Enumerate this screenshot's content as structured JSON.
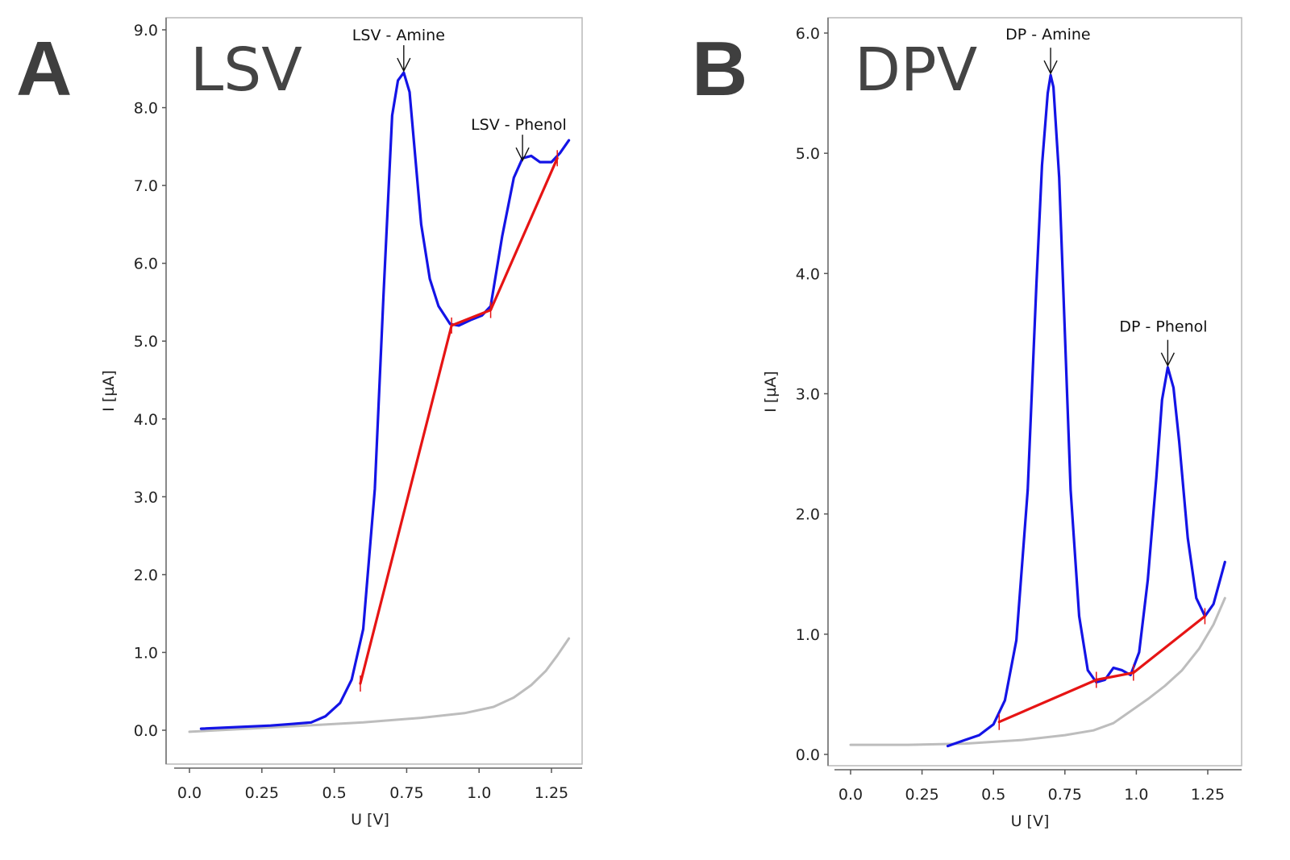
{
  "panels": [
    {
      "letter": "A",
      "mode": "LSV"
    },
    {
      "letter": "B",
      "mode": "DPV"
    }
  ],
  "colors": {
    "sample": "#1414e6",
    "baseline": "#e61414",
    "blank": "#bdbdbd",
    "frame": "#b9b9b9"
  },
  "chart_data": [
    {
      "type": "line",
      "title": "LSV",
      "xlabel": "U [V]",
      "ylabel": "I [µA]",
      "xlim": [
        -0.05,
        1.37
      ],
      "ylim": [
        -0.5,
        9.1
      ],
      "xticks": [
        0,
        0.25,
        0.5,
        0.75,
        1.0,
        1.25
      ],
      "xtick_labels": [
        "0.0",
        "0.25",
        "0.5",
        "0.75",
        "1.0",
        "1.25"
      ],
      "yticks": [
        0,
        1,
        2,
        3,
        4,
        5,
        6,
        7,
        8,
        9
      ],
      "ytick_labels": [
        "0.0",
        "1.0",
        "2.0",
        "3.0",
        "4.0",
        "5.0",
        "6.0",
        "7.0",
        "8.0",
        "9.0"
      ],
      "series": [
        {
          "name": "sample",
          "color": "#1414e6",
          "x": [
            0.04,
            0.28,
            0.35,
            0.42,
            0.47,
            0.52,
            0.56,
            0.6,
            0.64,
            0.67,
            0.7,
            0.72,
            0.74,
            0.76,
            0.78,
            0.8,
            0.83,
            0.86,
            0.9,
            0.93,
            0.97,
            1.01,
            1.04,
            1.08,
            1.12,
            1.15,
            1.18,
            1.21,
            1.25,
            1.28,
            1.31
          ],
          "y": [
            0.02,
            0.06,
            0.08,
            0.1,
            0.18,
            0.35,
            0.65,
            1.3,
            3.1,
            5.6,
            7.9,
            8.35,
            8.45,
            8.2,
            7.35,
            6.5,
            5.8,
            5.45,
            5.22,
            5.2,
            5.27,
            5.33,
            5.45,
            6.35,
            7.1,
            7.35,
            7.38,
            7.3,
            7.3,
            7.42,
            7.58
          ]
        },
        {
          "name": "baseline",
          "color": "#e61414",
          "x": [
            0.59,
            0.905,
            1.04,
            1.27
          ],
          "y": [
            0.6,
            5.2,
            5.4,
            7.35
          ]
        },
        {
          "name": "blank",
          "color": "#bdbdbd",
          "x": [
            0.0,
            0.2,
            0.4,
            0.6,
            0.8,
            0.95,
            1.05,
            1.12,
            1.18,
            1.23,
            1.27,
            1.31
          ],
          "y": [
            -0.02,
            0.02,
            0.06,
            0.1,
            0.16,
            0.22,
            0.3,
            0.42,
            0.58,
            0.76,
            0.96,
            1.18
          ]
        }
      ],
      "baseline_markers": [
        [
          0.59,
          0.6
        ],
        [
          0.905,
          5.2
        ],
        [
          1.04,
          5.4
        ],
        [
          1.27,
          7.35
        ]
      ],
      "annotations": [
        {
          "text": "LSV - Amine",
          "x": 0.74,
          "y": 8.45
        },
        {
          "text": "LSV - Phenol",
          "x": 1.15,
          "y": 7.3
        }
      ]
    },
    {
      "type": "line",
      "title": "DPV",
      "xlabel": "U [V]",
      "ylabel": "I [µA]",
      "xlim": [
        -0.05,
        1.37
      ],
      "ylim": [
        -0.1,
        6.1
      ],
      "xticks": [
        0,
        0.25,
        0.5,
        0.75,
        1.0,
        1.25
      ],
      "xtick_labels": [
        "0.0",
        "0.25",
        "0.5",
        "0.75",
        "1.0",
        "1.25"
      ],
      "yticks": [
        0,
        1,
        2,
        3,
        4,
        5,
        6
      ],
      "ytick_labels": [
        "0.0",
        "1.0",
        "2.0",
        "3.0",
        "4.0",
        "5.0",
        "6.0"
      ],
      "series": [
        {
          "name": "sample",
          "color": "#1414e6",
          "x": [
            0.34,
            0.4,
            0.45,
            0.5,
            0.54,
            0.58,
            0.62,
            0.65,
            0.67,
            0.69,
            0.7,
            0.71,
            0.73,
            0.75,
            0.77,
            0.8,
            0.83,
            0.86,
            0.89,
            0.92,
            0.95,
            0.98,
            1.01,
            1.04,
            1.07,
            1.09,
            1.11,
            1.13,
            1.15,
            1.18,
            1.21,
            1.24,
            1.27,
            1.31
          ],
          "y": [
            0.07,
            0.12,
            0.16,
            0.25,
            0.45,
            0.95,
            2.2,
            3.9,
            4.9,
            5.5,
            5.65,
            5.55,
            4.8,
            3.5,
            2.2,
            1.15,
            0.7,
            0.6,
            0.62,
            0.72,
            0.7,
            0.66,
            0.85,
            1.45,
            2.3,
            2.95,
            3.22,
            3.05,
            2.6,
            1.8,
            1.3,
            1.15,
            1.25,
            1.6
          ]
        },
        {
          "name": "baseline",
          "color": "#e61414",
          "x": [
            0.52,
            0.86,
            0.99,
            1.24
          ],
          "y": [
            0.27,
            0.62,
            0.68,
            1.15
          ]
        },
        {
          "name": "blank",
          "color": "#bdbdbd",
          "x": [
            0.0,
            0.2,
            0.4,
            0.6,
            0.75,
            0.85,
            0.92,
            0.98,
            1.04,
            1.1,
            1.16,
            1.22,
            1.27,
            1.31
          ],
          "y": [
            0.08,
            0.08,
            0.09,
            0.12,
            0.16,
            0.2,
            0.26,
            0.36,
            0.46,
            0.57,
            0.7,
            0.88,
            1.08,
            1.3
          ]
        }
      ],
      "baseline_markers": [
        [
          0.52,
          0.27
        ],
        [
          0.86,
          0.62
        ],
        [
          0.99,
          0.68
        ],
        [
          1.24,
          1.15
        ]
      ],
      "annotations": [
        {
          "text": "DP - Amine",
          "x": 0.7,
          "y": 5.65
        },
        {
          "text": "DP - Phenol",
          "x": 1.11,
          "y": 3.22
        }
      ]
    }
  ]
}
